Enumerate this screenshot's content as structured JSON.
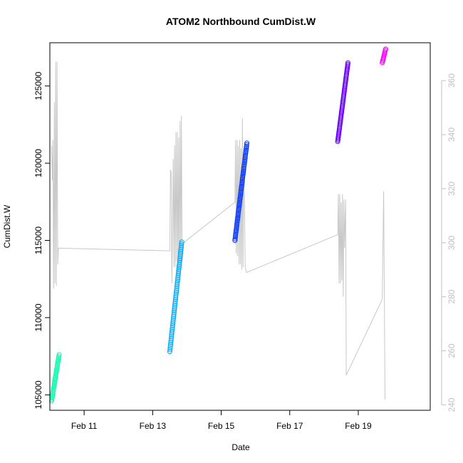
{
  "chart_data": {
    "type": "scatter",
    "title": "ATOM2 Northbound CumDist.W",
    "xlabel": "Date",
    "ylabel": "CumDist.W",
    "x_unit": "day",
    "x_ticks": [
      11,
      13,
      15,
      17,
      19
    ],
    "x_tick_labels": [
      "Feb 11",
      "Feb 13",
      "Feb 15",
      "Feb 17",
      "Feb 19"
    ],
    "xlim": [
      10.0,
      21.1
    ],
    "ylim_left": [
      104000,
      127800
    ],
    "y_ticks_left": [
      105000,
      110000,
      115000,
      120000,
      125000
    ],
    "y_tick_labels_left": [
      "105000",
      "110000",
      "115000",
      "120000",
      "125000"
    ],
    "ylim_right": [
      238,
      374
    ],
    "y_ticks_right": [
      240,
      260,
      280,
      300,
      320,
      340,
      360
    ],
    "y_tick_labels_right": [
      "240",
      "260",
      "280",
      "300",
      "320",
      "340",
      "360"
    ],
    "right_axis_color": "#c0c0c0",
    "legend": "none",
    "grid": false,
    "series": [
      {
        "color": "#00ffaa",
        "x_range": [
          10.05,
          10.27
        ],
        "y_range": [
          104600,
          107600
        ],
        "n_points": 30
      },
      {
        "color": "#00aaff",
        "x_range": [
          13.5,
          13.85
        ],
        "y_range": [
          107800,
          114900
        ],
        "n_points": 60
      },
      {
        "color": "#0033ff",
        "x_range": [
          15.4,
          15.75
        ],
        "y_range": [
          115000,
          121300
        ],
        "n_points": 60
      },
      {
        "color": "#6600ff",
        "x_range": [
          18.4,
          18.7
        ],
        "y_range": [
          121400,
          126500
        ],
        "n_points": 60
      },
      {
        "color": "#ff00ff",
        "x_range": [
          19.7,
          19.8
        ],
        "y_range": [
          126500,
          127400
        ],
        "n_points": 12
      }
    ],
    "secondary_line": {
      "color": "#c8c8c8",
      "axis": "right",
      "points": [
        [
          10.05,
          336
        ],
        [
          10.07,
          323
        ],
        [
          10.09,
          338
        ],
        [
          10.11,
          283
        ],
        [
          10.13,
          352
        ],
        [
          10.15,
          285
        ],
        [
          10.17,
          367
        ],
        [
          10.19,
          284
        ],
        [
          10.21,
          367
        ],
        [
          10.23,
          292
        ],
        [
          10.25,
          298
        ],
        [
          13.5,
          297
        ],
        [
          13.52,
          327
        ],
        [
          13.54,
          326
        ],
        [
          13.56,
          285
        ],
        [
          13.6,
          331
        ],
        [
          13.62,
          291
        ],
        [
          13.64,
          336
        ],
        [
          13.66,
          291
        ],
        [
          13.68,
          341
        ],
        [
          13.7,
          293
        ],
        [
          13.72,
          341
        ],
        [
          13.74,
          285
        ],
        [
          13.76,
          339
        ],
        [
          13.78,
          290
        ],
        [
          13.8,
          345
        ],
        [
          13.82,
          292
        ],
        [
          13.84,
          347
        ],
        [
          13.86,
          293
        ],
        [
          13.9,
          300
        ],
        [
          15.4,
          315
        ],
        [
          15.42,
          338
        ],
        [
          15.44,
          296
        ],
        [
          15.46,
          338
        ],
        [
          15.48,
          295
        ],
        [
          15.5,
          336
        ],
        [
          15.52,
          292
        ],
        [
          15.54,
          338
        ],
        [
          15.56,
          292
        ],
        [
          15.58,
          335
        ],
        [
          15.6,
          290
        ],
        [
          15.62,
          346
        ],
        [
          15.64,
          291
        ],
        [
          15.66,
          335
        ],
        [
          15.7,
          291
        ],
        [
          15.74,
          289
        ],
        [
          18.4,
          303
        ],
        [
          18.42,
          318
        ],
        [
          18.44,
          285
        ],
        [
          18.46,
          318
        ],
        [
          18.48,
          285
        ],
        [
          18.5,
          315
        ],
        [
          18.52,
          286
        ],
        [
          18.54,
          318
        ],
        [
          18.56,
          280
        ],
        [
          18.58,
          316
        ],
        [
          18.6,
          298
        ],
        [
          18.63,
          316
        ],
        [
          18.65,
          251
        ],
        [
          19.7,
          279
        ],
        [
          19.74,
          319
        ],
        [
          19.78,
          242
        ]
      ]
    }
  }
}
